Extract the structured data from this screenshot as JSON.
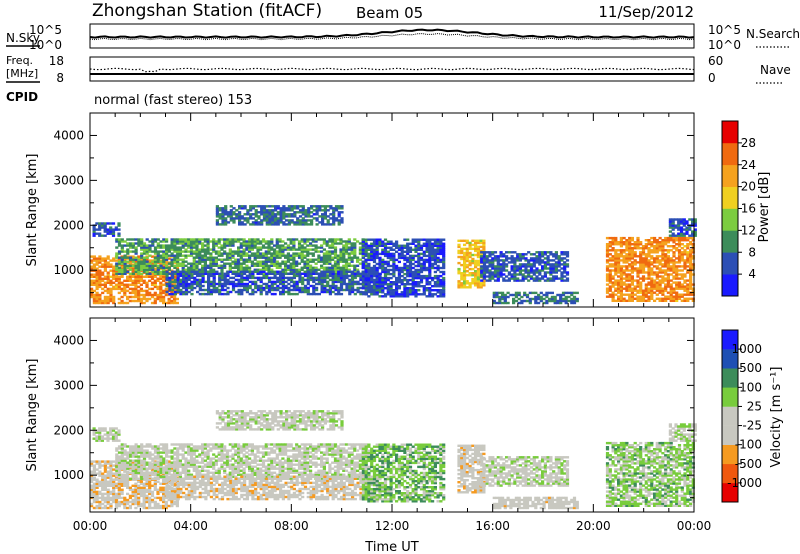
{
  "header": {
    "station": "Zhongshan Station (fitACF)",
    "beam": "Beam 05",
    "date": "11/Sep/2012"
  },
  "summary_panels": {
    "sky": {
      "left_label": "N.Sky",
      "left_ticks": [
        "10^5",
        "10^0"
      ],
      "right_ticks": [
        "10^5",
        "10^0"
      ],
      "right_label": "N.Search"
    },
    "freq": {
      "left_label_top": "Freq.",
      "left_label_unit": "[MHz]",
      "left_ticks": [
        "18",
        "8"
      ],
      "right_ticks": [
        "60",
        "0"
      ],
      "right_label": "Nave"
    },
    "cpid": {
      "label": "CPID",
      "mode_text": "normal (fast stereo) 153"
    }
  },
  "colors": {
    "power_scale": [
      "#1a1aff",
      "#2c4fb5",
      "#3c8c5a",
      "#7ccc40",
      "#f0d020",
      "#f5a21e",
      "#f06a10",
      "#e60000"
    ],
    "velocity_scale": [
      "#e60000",
      "#f0580e",
      "#f59a20",
      "#c8c8c0",
      "#c8c8c0",
      "#78cc3c",
      "#3c8c5a",
      "#1e50b4",
      "#1a1aff"
    ]
  },
  "chart_data": [
    {
      "type": "heatmap",
      "panel": "power",
      "ylabel": "Slant Range [km]",
      "ylim": [
        180,
        4500
      ],
      "yticks": [
        "1000",
        "2000",
        "3000",
        "4000"
      ],
      "x_range_hours": [
        0,
        24
      ],
      "colorbar": {
        "label": "Power [dB]",
        "ticks": [
          "4",
          "8",
          "12",
          "16",
          "20",
          "24",
          "28"
        ],
        "range": [
          0,
          30
        ]
      },
      "echo_regions": [
        {
          "t0": 0.0,
          "t1": 3.5,
          "r0": 250,
          "r1": 1300,
          "level": 22
        },
        {
          "t0": 0.1,
          "t1": 1.2,
          "r0": 1750,
          "r1": 2050,
          "level": 6
        },
        {
          "t0": 1.0,
          "t1": 11.0,
          "r0": 900,
          "r1": 1700,
          "level": 10
        },
        {
          "t0": 3.0,
          "t1": 11.5,
          "r0": 450,
          "r1": 950,
          "level": 6
        },
        {
          "t0": 5.0,
          "t1": 10.0,
          "r0": 2000,
          "r1": 2450,
          "level": 7
        },
        {
          "t0": 10.8,
          "t1": 14.0,
          "r0": 400,
          "r1": 1700,
          "level": 5
        },
        {
          "t0": 14.6,
          "t1": 15.6,
          "r0": 600,
          "r1": 1650,
          "level": 18
        },
        {
          "t0": 15.5,
          "t1": 19.0,
          "r0": 750,
          "r1": 1400,
          "level": 6
        },
        {
          "t0": 16.0,
          "t1": 19.4,
          "r0": 250,
          "r1": 500,
          "level": 7
        },
        {
          "t0": 20.5,
          "t1": 24.0,
          "r0": 300,
          "r1": 1700,
          "level": 22
        },
        {
          "t0": 23.0,
          "t1": 24.0,
          "r0": 1750,
          "r1": 2150,
          "level": 6
        }
      ]
    },
    {
      "type": "heatmap",
      "panel": "velocity",
      "ylabel": "Slant Range [km]",
      "ylim": [
        180,
        4500
      ],
      "yticks": [
        "1000",
        "2000",
        "3000",
        "4000"
      ],
      "xticks": [
        "00:00",
        "04:00",
        "08:00",
        "12:00",
        "16:00",
        "20:00",
        "00:00"
      ],
      "xlabel": "Time UT",
      "x_range_hours": [
        0,
        24
      ],
      "colorbar": {
        "label": "Velocity [m s⁻¹]",
        "ticks": [
          "1000",
          "500",
          "100",
          "25",
          "-25",
          "-100",
          "-500",
          "-1000"
        ],
        "range": [
          -1200,
          1200
        ]
      },
      "echo_regions": [
        {
          "t0": 0.0,
          "t1": 3.5,
          "r0": 250,
          "r1": 1300,
          "level": -300
        },
        {
          "t0": 0.1,
          "t1": 1.2,
          "r0": 1750,
          "r1": 2050,
          "level": 0
        },
        {
          "t0": 1.0,
          "t1": 11.0,
          "r0": 900,
          "r1": 1700,
          "level": 0
        },
        {
          "t0": 3.0,
          "t1": 11.5,
          "r0": 450,
          "r1": 950,
          "level": -200
        },
        {
          "t0": 5.0,
          "t1": 10.0,
          "r0": 2000,
          "r1": 2450,
          "level": 0
        },
        {
          "t0": 10.8,
          "t1": 14.0,
          "r0": 400,
          "r1": 1700,
          "level": 300
        },
        {
          "t0": 14.6,
          "t1": 15.6,
          "r0": 600,
          "r1": 1650,
          "level": -200
        },
        {
          "t0": 15.5,
          "t1": 19.0,
          "r0": 750,
          "r1": 1400,
          "level": 0
        },
        {
          "t0": 16.0,
          "t1": 19.4,
          "r0": 250,
          "r1": 500,
          "level": -150
        },
        {
          "t0": 20.5,
          "t1": 24.0,
          "r0": 300,
          "r1": 1700,
          "level": 200
        },
        {
          "t0": 23.0,
          "t1": 24.0,
          "r0": 1750,
          "r1": 2150,
          "level": 0
        }
      ]
    }
  ]
}
